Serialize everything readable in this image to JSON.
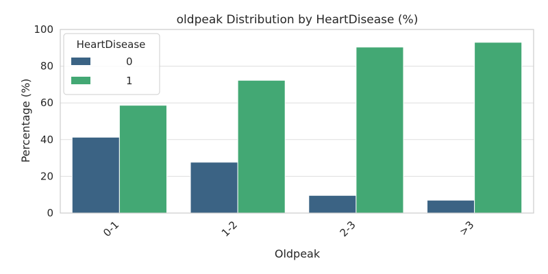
{
  "chart_data": {
    "type": "bar",
    "title": "oldpeak Distribution by HeartDisease (%)",
    "xlabel": "Oldpeak",
    "ylabel": "Percentage (%)",
    "categories": [
      "0-1",
      "1-2",
      "2-3",
      ">3"
    ],
    "ylim": [
      0,
      100
    ],
    "yticks": [
      0,
      20,
      40,
      60,
      80,
      100
    ],
    "grid": true,
    "legend": {
      "title": "HeartDisease",
      "placement": "top-left"
    },
    "series": [
      {
        "name": "0",
        "values": [
          41.3,
          27.7,
          9.6,
          7.0
        ],
        "color": "#3b6384"
      },
      {
        "name": "1",
        "values": [
          58.7,
          72.3,
          90.4,
          93.0
        ],
        "color": "#43a874"
      }
    ]
  }
}
